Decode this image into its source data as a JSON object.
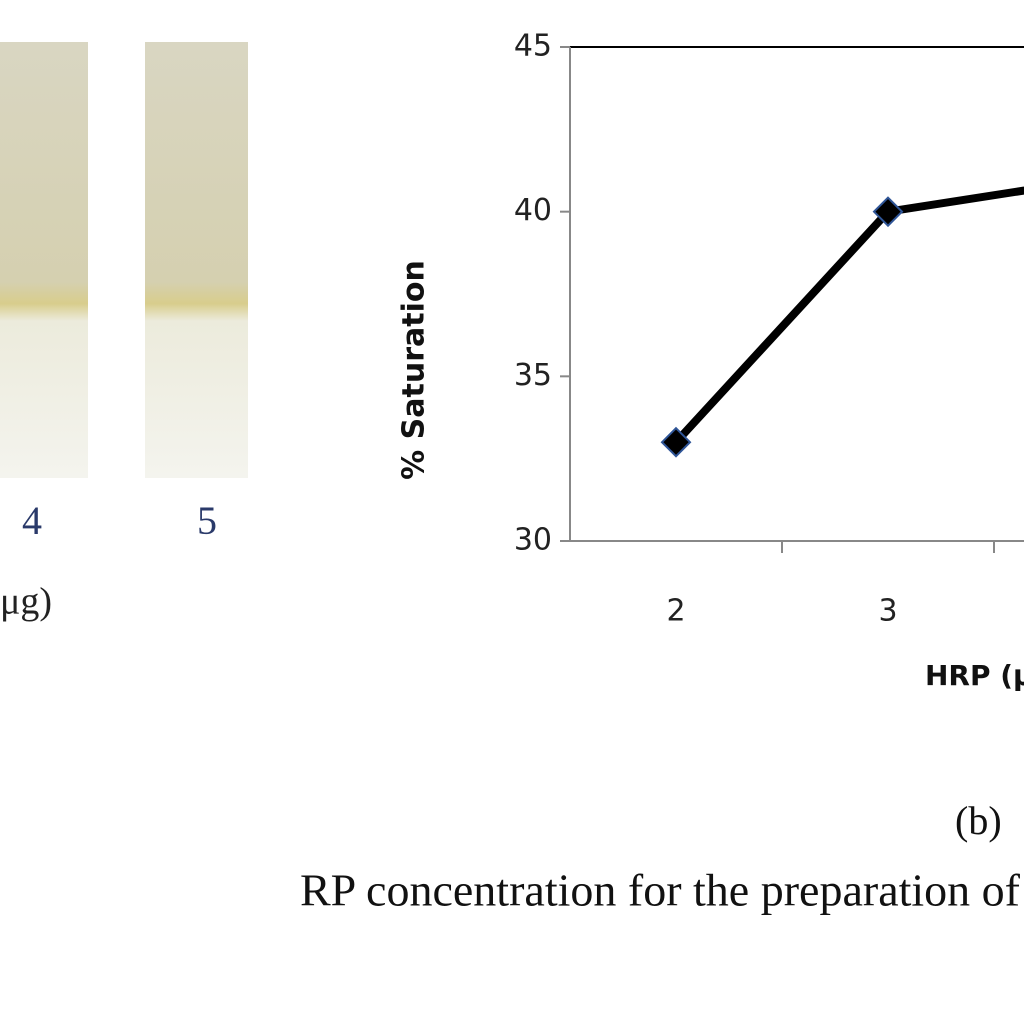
{
  "panel_a": {
    "tube_labels": [
      "4",
      "5"
    ],
    "axis_label": "μg)"
  },
  "panel_b_label": "(b)",
  "caption": "RP concentration for the preparation of a",
  "chart_data": {
    "type": "line",
    "categories": [
      "2",
      "3",
      null
    ],
    "values": [
      33,
      40,
      41
    ],
    "color": "#000000",
    "marker_edge": "#2f5597",
    "ylabel": "% Saturation",
    "xlabel": "HRP (μ",
    "ylim": [
      30,
      45
    ],
    "yticks": [
      30,
      35,
      40,
      45
    ],
    "grid": false
  }
}
